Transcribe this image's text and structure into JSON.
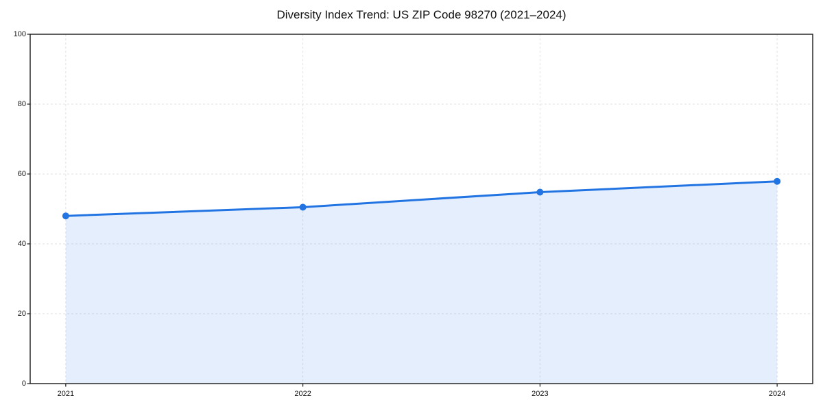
{
  "page": {
    "title": "Diversity Index Trend: US ZIP Code 98270 (2021–2024)"
  },
  "chart_data": {
    "type": "line",
    "title": "Diversity Index Trend: US ZIP Code 98270 (2021–2024)",
    "x": [
      2021,
      2022,
      2023,
      2024
    ],
    "x_tick_labels": [
      "2021",
      "2022",
      "2023",
      "2024"
    ],
    "series": [
      {
        "name": "Diversity Index",
        "values": [
          48,
          50.5,
          54.8,
          57.9
        ]
      }
    ],
    "xlabel": "",
    "ylabel": "",
    "ylim": [
      0,
      100
    ],
    "y_ticks": [
      0,
      20,
      40,
      60,
      80,
      100
    ],
    "grid": true,
    "grid_style": "dashed",
    "legend": "none",
    "marker": "circle",
    "area_fill": true,
    "colors": {
      "line": "#2274e3",
      "area_fill": "rgba(34,116,227,0.12)",
      "grid": "#e2e2e2",
      "spine": "#1a1a1a",
      "text": "#111111",
      "background": "#ffffff"
    }
  }
}
